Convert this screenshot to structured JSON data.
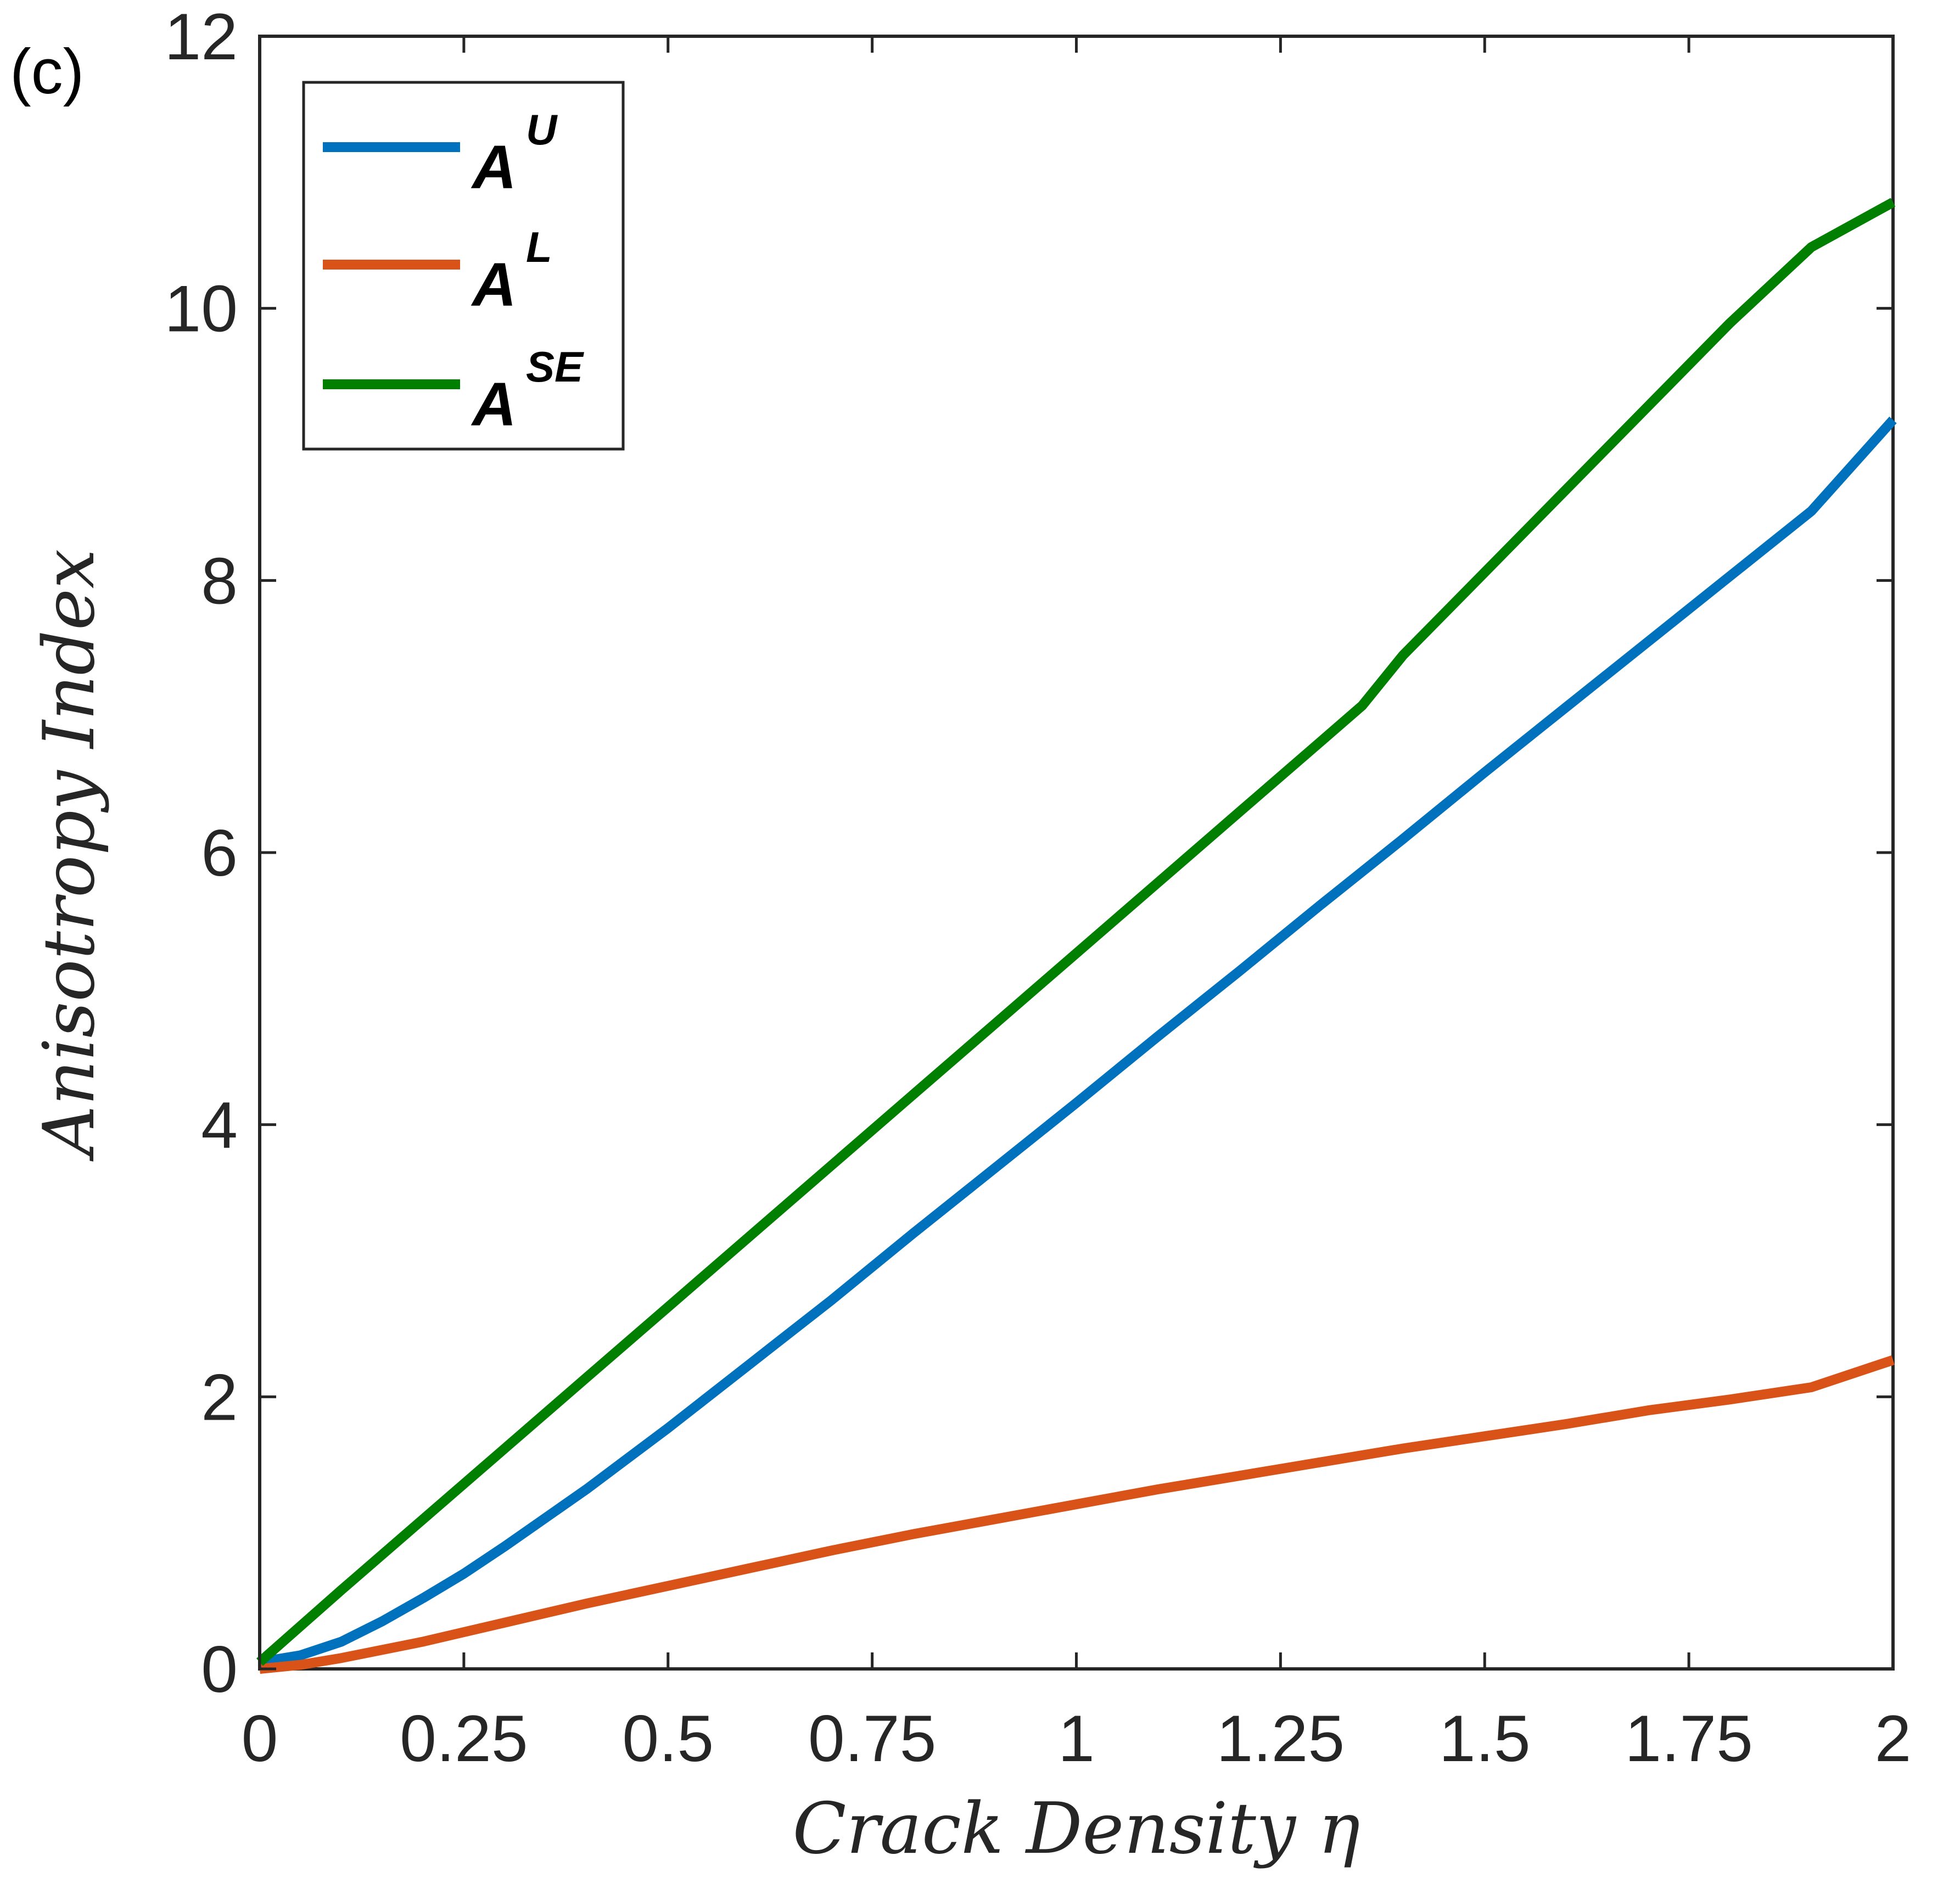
{
  "panel_label": "(c)",
  "chart_data": {
    "type": "line",
    "xlabel": "Crack Density η",
    "ylabel": "Anisotropy Index",
    "xlim": [
      0,
      2
    ],
    "ylim": [
      0,
      12
    ],
    "xticks": [
      0,
      0.25,
      0.5,
      0.75,
      1,
      1.25,
      1.5,
      1.75,
      2
    ],
    "xtick_labels": [
      "0",
      "0.25",
      "0.5",
      "0.75",
      "1",
      "1.25",
      "1.5",
      "1.75",
      "2"
    ],
    "yticks": [
      0,
      2,
      4,
      6,
      8,
      10,
      12
    ],
    "ytick_labels": [
      "0",
      "2",
      "4",
      "6",
      "8",
      "10",
      "12"
    ],
    "grid": false,
    "legend_position": "top-left",
    "series": [
      {
        "name": "A^U",
        "label_base": "A",
        "label_sup": "U",
        "color": "#0072BD",
        "x": [
          0,
          0.05,
          0.1,
          0.15,
          0.2,
          0.25,
          0.3,
          0.4,
          0.5,
          0.6,
          0.7,
          0.8,
          0.9,
          1.0,
          1.1,
          1.2,
          1.3,
          1.4,
          1.5,
          1.6,
          1.7,
          1.8,
          1.9,
          2.0
        ],
        "y": [
          0.05,
          0.1,
          0.2,
          0.35,
          0.52,
          0.7,
          0.9,
          1.32,
          1.77,
          2.24,
          2.71,
          3.2,
          3.68,
          4.16,
          4.65,
          5.13,
          5.62,
          6.1,
          6.59,
          7.07,
          7.55,
          8.03,
          8.51,
          9.18
        ]
      },
      {
        "name": "A^L",
        "label_base": "A",
        "label_sup": "L",
        "color": "#D95319",
        "x": [
          0,
          0.05,
          0.1,
          0.2,
          0.3,
          0.4,
          0.5,
          0.6,
          0.7,
          0.8,
          0.9,
          1.0,
          1.1,
          1.2,
          1.3,
          1.4,
          1.5,
          1.6,
          1.7,
          1.8,
          1.9,
          2.0
        ],
        "y": [
          0.0,
          0.03,
          0.08,
          0.2,
          0.34,
          0.48,
          0.61,
          0.74,
          0.87,
          0.99,
          1.1,
          1.21,
          1.32,
          1.42,
          1.52,
          1.62,
          1.71,
          1.8,
          1.9,
          1.98,
          2.07,
          2.27
        ]
      },
      {
        "name": "A^SE",
        "label_base": "A",
        "label_sup": "SE",
        "color": "#007F00",
        "x": [
          0,
          0.1,
          0.2,
          0.3,
          0.4,
          0.5,
          0.6,
          0.7,
          0.8,
          0.9,
          1.0,
          1.1,
          1.2,
          1.3,
          1.35,
          1.4,
          1.5,
          1.6,
          1.7,
          1.8,
          1.9,
          2.0
        ],
        "y": [
          0.05,
          0.58,
          1.1,
          1.62,
          2.14,
          2.66,
          3.18,
          3.7,
          4.22,
          4.74,
          5.26,
          5.78,
          6.3,
          6.82,
          7.08,
          7.45,
          8.06,
          8.67,
          9.28,
          9.89,
          10.45,
          10.78
        ]
      }
    ]
  }
}
